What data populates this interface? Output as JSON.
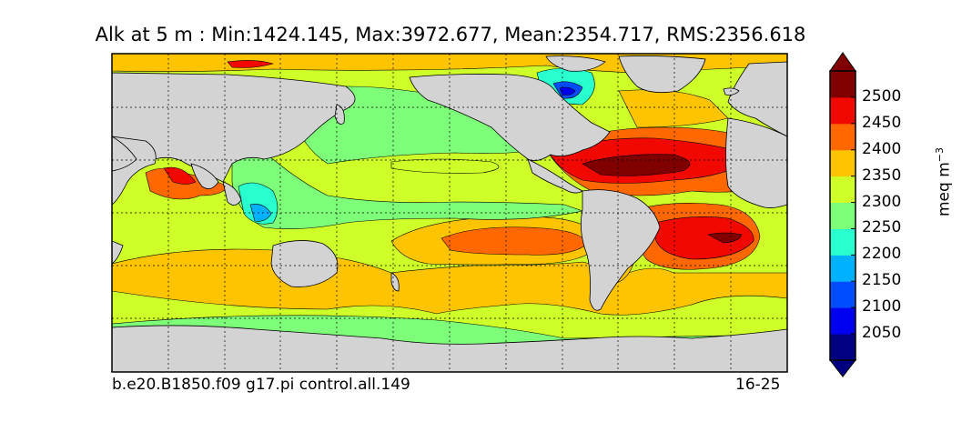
{
  "chart_data": {
    "type": "heatmap",
    "title": "Alk at 5 m : Min:1424.145, Max:3972.677, Mean:2354.717, RMS:2356.618",
    "variable": "Alk",
    "depth": "5 m",
    "stats": {
      "min": 1424.145,
      "max": 3972.677,
      "mean": 2354.717,
      "rms": 2356.618
    },
    "run_label": "b.e20.B1850.f09 g17.pi control.all.149",
    "years_label": "16-25",
    "colorbar": {
      "label": "meq m",
      "label_exponent": "−3",
      "levels": [
        2050,
        2100,
        2150,
        2200,
        2250,
        2300,
        2350,
        2400,
        2450,
        2500
      ],
      "tick_labels": [
        "2050",
        "2100",
        "2150",
        "2200",
        "2250",
        "2300",
        "2350",
        "2400",
        "2450",
        "2500"
      ],
      "colors": [
        "#000080",
        "#0000f1",
        "#004dff",
        "#00b1ff",
        "#29ffce",
        "#7dff7a",
        "#ceff29",
        "#ffc400",
        "#ff6800",
        "#f10800",
        "#800000"
      ],
      "extend": "both"
    },
    "land_color": "#d3d3d3",
    "grid": true
  }
}
